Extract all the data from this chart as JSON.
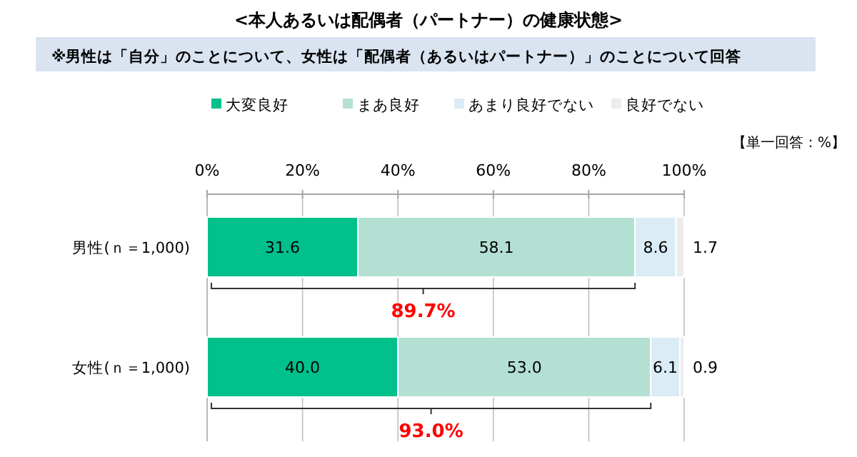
{
  "chart_data": {
    "type": "bar",
    "orientation": "horizontal",
    "stacked": true,
    "title": "<本人あるいは配偶者（パートナー）の健康状態>",
    "subtitle": "※男性は「自分」のことについて、女性は「配偶者（あるいはパートナー）」のことについて回答",
    "categories": [
      "男性(ｎ＝1,000)",
      "女性(ｎ＝1,000)"
    ],
    "series": [
      {
        "name": "大変良好",
        "color": "#00c08b",
        "values": [
          31.6,
          40.0
        ],
        "value_labels": [
          "31.6",
          "40.0"
        ]
      },
      {
        "name": "まあ良好",
        "color": "#b4e0d4",
        "values": [
          58.1,
          53.0
        ],
        "value_labels": [
          "58.1",
          "53.0"
        ]
      },
      {
        "name": "あまり良好でない",
        "color": "#daecf5",
        "values": [
          8.6,
          6.1
        ],
        "value_labels": [
          "8.6",
          "6.1"
        ]
      },
      {
        "name": "良好でない",
        "color": "#ececec",
        "values": [
          1.7,
          0.9
        ],
        "value_labels": [
          "1.7",
          "0.9"
        ]
      }
    ],
    "xlim": [
      0,
      100
    ],
    "xticks": [
      {
        "value": 0,
        "label": "0%"
      },
      {
        "value": 20,
        "label": "20%"
      },
      {
        "value": 40,
        "label": "40%"
      },
      {
        "value": 60,
        "label": "60%"
      },
      {
        "value": 80,
        "label": "80%"
      },
      {
        "value": 100,
        "label": "100%"
      }
    ],
    "grid": "x",
    "legend": "top",
    "annotations": [
      "【単一回答：%】",
      "89.7%",
      "93.0%"
    ]
  }
}
